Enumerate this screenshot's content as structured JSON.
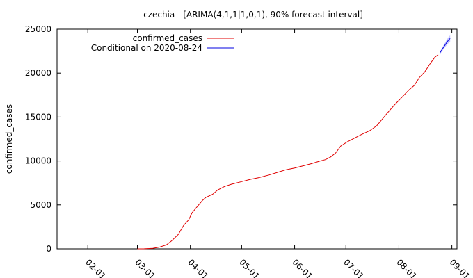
{
  "chart_data": {
    "type": "line",
    "title": "czechia -  [ARIMA(4,1,1|1,0,1), 90% forecast interval]",
    "ylabel": "confirmed_cases",
    "xlabel": "",
    "xlim": [
      "2020-01-14",
      "2020-09-04"
    ],
    "ylim": [
      0,
      25000
    ],
    "y_ticks": [
      0,
      5000,
      10000,
      15000,
      20000,
      25000
    ],
    "x_ticks": [
      {
        "date": "2020-02-01",
        "label": "02-01"
      },
      {
        "date": "2020-03-01",
        "label": "03-01"
      },
      {
        "date": "2020-04-01",
        "label": "04-01"
      },
      {
        "date": "2020-05-01",
        "label": "05-01"
      },
      {
        "date": "2020-06-01",
        "label": "06-01"
      },
      {
        "date": "2020-07-01",
        "label": "07-01"
      },
      {
        "date": "2020-08-01",
        "label": "08-01"
      },
      {
        "date": "2020-09-01",
        "label": "09-01"
      }
    ],
    "grid": false,
    "legend_position": "top-left",
    "series": [
      {
        "name": "confirmed_cases",
        "color": "#e00000",
        "points": [
          [
            "2020-03-01",
            0
          ],
          [
            "2020-03-05",
            10
          ],
          [
            "2020-03-10",
            60
          ],
          [
            "2020-03-14",
            200
          ],
          [
            "2020-03-18",
            450
          ],
          [
            "2020-03-21",
            900
          ],
          [
            "2020-03-25",
            1650
          ],
          [
            "2020-03-28",
            2650
          ],
          [
            "2020-03-31",
            3300
          ],
          [
            "2020-04-02",
            4100
          ],
          [
            "2020-04-05",
            4800
          ],
          [
            "2020-04-08",
            5500
          ],
          [
            "2020-04-10",
            5850
          ],
          [
            "2020-04-14",
            6200
          ],
          [
            "2020-04-17",
            6700
          ],
          [
            "2020-04-21",
            7100
          ],
          [
            "2020-04-25",
            7350
          ],
          [
            "2020-05-01",
            7650
          ],
          [
            "2020-05-06",
            7900
          ],
          [
            "2020-05-11",
            8100
          ],
          [
            "2020-05-17",
            8400
          ],
          [
            "2020-05-22",
            8700
          ],
          [
            "2020-05-27",
            9000
          ],
          [
            "2020-06-01",
            9200
          ],
          [
            "2020-06-06",
            9450
          ],
          [
            "2020-06-11",
            9700
          ],
          [
            "2020-06-16",
            10000
          ],
          [
            "2020-06-19",
            10150
          ],
          [
            "2020-06-22",
            10450
          ],
          [
            "2020-06-25",
            10900
          ],
          [
            "2020-06-28",
            11700
          ],
          [
            "2020-07-02",
            12200
          ],
          [
            "2020-07-06",
            12600
          ],
          [
            "2020-07-10",
            13000
          ],
          [
            "2020-07-15",
            13450
          ],
          [
            "2020-07-19",
            14000
          ],
          [
            "2020-07-22",
            14700
          ],
          [
            "2020-07-25",
            15400
          ],
          [
            "2020-07-29",
            16300
          ],
          [
            "2020-08-01",
            16900
          ],
          [
            "2020-08-04",
            17500
          ],
          [
            "2020-08-07",
            18100
          ],
          [
            "2020-08-10",
            18600
          ],
          [
            "2020-08-13",
            19500
          ],
          [
            "2020-08-16",
            20100
          ],
          [
            "2020-08-19",
            21000
          ],
          [
            "2020-08-22",
            21800
          ],
          [
            "2020-08-24",
            22100
          ]
        ]
      },
      {
        "name": "Conditional on 2020-08-24",
        "color": "#0000e0",
        "band_color": "#c4c4ff",
        "points": [
          [
            "2020-08-25",
            22300
          ],
          [
            "2020-08-26",
            22600
          ],
          [
            "2020-08-27",
            22900
          ],
          [
            "2020-08-28",
            23200
          ],
          [
            "2020-08-29",
            23500
          ],
          [
            "2020-08-30",
            23750
          ],
          [
            "2020-08-31",
            23950
          ]
        ],
        "band": [
          [
            "2020-08-25",
            22150,
            22450
          ],
          [
            "2020-08-26",
            22420,
            22780
          ],
          [
            "2020-08-27",
            22680,
            23120
          ],
          [
            "2020-08-28",
            22950,
            23450
          ],
          [
            "2020-08-29",
            23200,
            23800
          ],
          [
            "2020-08-30",
            23420,
            24080
          ],
          [
            "2020-08-31",
            23600,
            24300
          ]
        ]
      }
    ]
  }
}
